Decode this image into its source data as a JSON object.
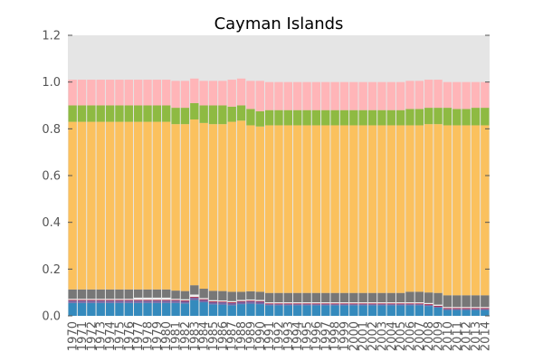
{
  "chart_data": {
    "type": "bar",
    "stacked": true,
    "title": "Cayman Islands",
    "xlabel": "",
    "ylabel": "",
    "ylim": [
      0,
      1.2
    ],
    "yticks": [
      "0.0",
      "0.2",
      "0.4",
      "0.6",
      "0.8",
      "1.0",
      "1.2"
    ],
    "grid": false,
    "background": "#e5e5e5",
    "categories": [
      "1970",
      "1971",
      "1972",
      "1973",
      "1974",
      "1975",
      "1976",
      "1977",
      "1978",
      "1979",
      "1980",
      "1981",
      "1982",
      "1983",
      "1984",
      "1985",
      "1986",
      "1987",
      "1988",
      "1989",
      "1990",
      "1991",
      "1992",
      "1993",
      "1994",
      "1995",
      "1996",
      "1997",
      "1998",
      "1999",
      "2000",
      "2001",
      "2002",
      "2003",
      "2004",
      "2005",
      "2006",
      "2007",
      "2008",
      "2009",
      "2010",
      "2011",
      "2012",
      "2013",
      "2014"
    ],
    "series": [
      {
        "color": "#348abd",
        "values": [
          0.055,
          0.055,
          0.055,
          0.055,
          0.055,
          0.055,
          0.055,
          0.055,
          0.055,
          0.055,
          0.055,
          0.055,
          0.053,
          0.068,
          0.058,
          0.049,
          0.048,
          0.045,
          0.05,
          0.052,
          0.05,
          0.045,
          0.045,
          0.045,
          0.045,
          0.045,
          0.045,
          0.045,
          0.045,
          0.045,
          0.045,
          0.045,
          0.045,
          0.045,
          0.045,
          0.045,
          0.045,
          0.045,
          0.042,
          0.035,
          0.025,
          0.025,
          0.025,
          0.025,
          0.025
        ]
      },
      {
        "color": "#7a68a6",
        "values": [
          0.01,
          0.01,
          0.01,
          0.01,
          0.01,
          0.01,
          0.01,
          0.01,
          0.01,
          0.01,
          0.01,
          0.01,
          0.01,
          0.01,
          0.01,
          0.01,
          0.01,
          0.01,
          0.01,
          0.01,
          0.01,
          0.005,
          0.005,
          0.005,
          0.005,
          0.005,
          0.005,
          0.005,
          0.005,
          0.005,
          0.005,
          0.005,
          0.005,
          0.005,
          0.005,
          0.005,
          0.005,
          0.005,
          0.005,
          0.005,
          0.005,
          0.005,
          0.005,
          0.005,
          0.005
        ]
      },
      {
        "color": "#a60628",
        "values": [
          0.003,
          0.003,
          0.003,
          0.003,
          0.003,
          0.003,
          0.003,
          0.003,
          0.003,
          0.003,
          0.003,
          0.003,
          0.003,
          0.003,
          0.003,
          0.003,
          0.003,
          0.003,
          0.003,
          0.003,
          0.003,
          0.003,
          0.003,
          0.003,
          0.003,
          0.003,
          0.003,
          0.003,
          0.003,
          0.003,
          0.003,
          0.003,
          0.003,
          0.003,
          0.003,
          0.003,
          0.003,
          0.003,
          0.003,
          0.003,
          0.003,
          0.003,
          0.003,
          0.003,
          0.003
        ]
      },
      {
        "color": "#eeeeee",
        "values": [
          0.005,
          0.005,
          0.005,
          0.005,
          0.005,
          0.005,
          0.005,
          0.01,
          0.01,
          0.01,
          0.01,
          0.005,
          0.005,
          0.01,
          0.005,
          0.005,
          0.005,
          0.005,
          0.005,
          0.005,
          0.005,
          0.005,
          0.005,
          0.005,
          0.005,
          0.005,
          0.005,
          0.005,
          0.005,
          0.005,
          0.005,
          0.005,
          0.005,
          0.005,
          0.005,
          0.005,
          0.005,
          0.005,
          0.005,
          0.005,
          0.005,
          0.005,
          0.005,
          0.005,
          0.005
        ]
      },
      {
        "color": "#777777",
        "values": [
          0.04,
          0.04,
          0.04,
          0.04,
          0.04,
          0.04,
          0.04,
          0.035,
          0.035,
          0.035,
          0.035,
          0.035,
          0.035,
          0.04,
          0.04,
          0.04,
          0.04,
          0.04,
          0.035,
          0.035,
          0.035,
          0.04,
          0.04,
          0.04,
          0.04,
          0.04,
          0.04,
          0.04,
          0.04,
          0.04,
          0.04,
          0.04,
          0.04,
          0.04,
          0.04,
          0.04,
          0.045,
          0.045,
          0.045,
          0.05,
          0.05,
          0.05,
          0.05,
          0.05,
          0.05
        ]
      },
      {
        "color": "#fbc15e",
        "values": [
          0.717,
          0.717,
          0.717,
          0.717,
          0.717,
          0.717,
          0.717,
          0.717,
          0.717,
          0.717,
          0.717,
          0.712,
          0.714,
          0.709,
          0.709,
          0.713,
          0.714,
          0.727,
          0.732,
          0.71,
          0.707,
          0.717,
          0.717,
          0.717,
          0.717,
          0.717,
          0.717,
          0.717,
          0.717,
          0.717,
          0.717,
          0.717,
          0.717,
          0.717,
          0.717,
          0.717,
          0.712,
          0.712,
          0.72,
          0.722,
          0.727,
          0.727,
          0.727,
          0.727,
          0.727
        ]
      },
      {
        "color": "#8eba42",
        "values": [
          0.07,
          0.07,
          0.07,
          0.07,
          0.07,
          0.07,
          0.07,
          0.07,
          0.07,
          0.07,
          0.07,
          0.07,
          0.07,
          0.07,
          0.075,
          0.08,
          0.08,
          0.065,
          0.065,
          0.07,
          0.065,
          0.065,
          0.065,
          0.065,
          0.065,
          0.065,
          0.065,
          0.065,
          0.065,
          0.065,
          0.065,
          0.065,
          0.065,
          0.065,
          0.065,
          0.065,
          0.07,
          0.07,
          0.07,
          0.07,
          0.075,
          0.07,
          0.07,
          0.075,
          0.075
        ]
      },
      {
        "color": "#ffb5b8",
        "values": [
          0.11,
          0.11,
          0.11,
          0.11,
          0.11,
          0.11,
          0.11,
          0.11,
          0.11,
          0.11,
          0.11,
          0.115,
          0.115,
          0.105,
          0.105,
          0.105,
          0.105,
          0.115,
          0.115,
          0.12,
          0.13,
          0.12,
          0.12,
          0.12,
          0.12,
          0.12,
          0.12,
          0.12,
          0.12,
          0.12,
          0.12,
          0.12,
          0.12,
          0.12,
          0.12,
          0.12,
          0.12,
          0.12,
          0.12,
          0.12,
          0.11,
          0.115,
          0.115,
          0.11,
          0.11
        ]
      }
    ]
  }
}
